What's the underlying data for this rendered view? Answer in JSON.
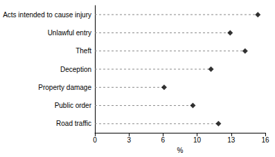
{
  "chart_data": {
    "type": "scatter",
    "orientation": "horizontal",
    "categories": [
      "Acts intended to cause injury",
      "Unlawful entry",
      "Theft",
      "Deception",
      "Property damage",
      "Public order",
      "Road traffic"
    ],
    "values": [
      15.3,
      12.7,
      14.1,
      10.9,
      6.5,
      9.2,
      11.6
    ],
    "color": "#000000",
    "marker": "diamond",
    "line_style": "dashed",
    "xlabel": "%",
    "xlim": [
      0,
      16
    ],
    "xticks": [
      0,
      {
        "value": 3.2,
        "label": "3"
      },
      {
        "value": 6.4,
        "label": "6"
      },
      {
        "value": 9.6,
        "label": "10"
      },
      {
        "value": 12.8,
        "label": "13"
      },
      16
    ]
  }
}
